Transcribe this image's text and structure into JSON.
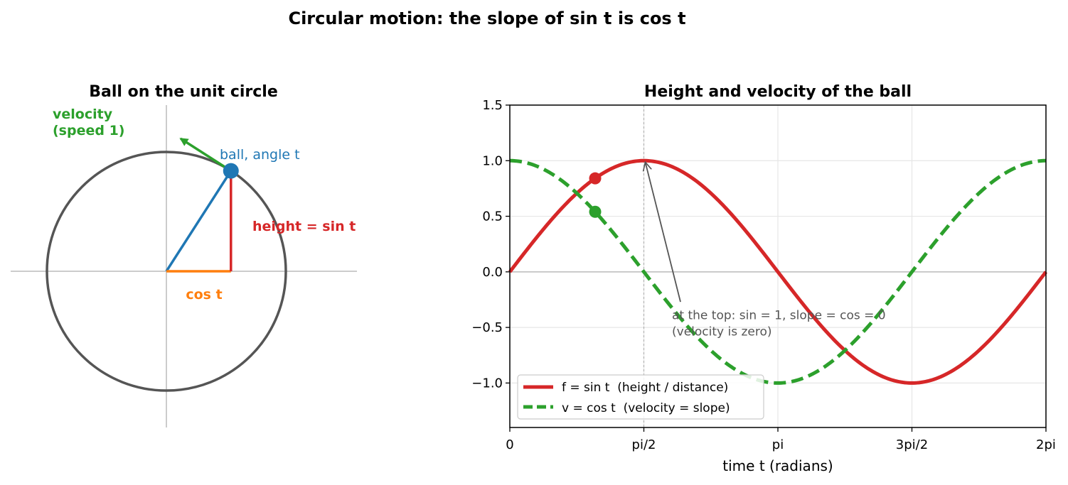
{
  "figure": {
    "suptitle": "Circular motion: the slope of  sin t  is  cos t"
  },
  "colors": {
    "sin": "#d62728",
    "cos": "#2ca02c",
    "radius": "#1f77b4",
    "cos_segment": "#ff7f0e",
    "circle": "#555555",
    "axes_line": "#bbbbbb",
    "annotation": "#555555"
  },
  "circle_panel": {
    "title": "Ball on the unit circle",
    "t": 1.0,
    "labels": {
      "velocity": [
        "velocity",
        "(speed 1)"
      ],
      "ball": "ball, angle t",
      "height": "height = sin t",
      "cos": "cos t"
    }
  },
  "chart_data": [
    {
      "type": "line",
      "title": "Height and velocity of the ball",
      "xlabel": "time  t  (radians)",
      "ylabel": "",
      "xlim": [
        0,
        6.283185
      ],
      "ylim": [
        -1.4,
        1.5
      ],
      "xticks": [
        {
          "value": 0,
          "label": "0"
        },
        {
          "value": 1.570796,
          "label": "pi/2"
        },
        {
          "value": 3.141593,
          "label": "pi"
        },
        {
          "value": 4.712389,
          "label": "3pi/2"
        },
        {
          "value": 6.283185,
          "label": "2pi"
        }
      ],
      "yticks": [
        {
          "value": 1.5,
          "label": "1.5"
        },
        {
          "value": 1.0,
          "label": "1.0"
        },
        {
          "value": 0.5,
          "label": "0.5"
        },
        {
          "value": 0.0,
          "label": "0.0"
        },
        {
          "value": -0.5,
          "label": "−0.5"
        },
        {
          "value": -1.0,
          "label": "−1.0"
        }
      ],
      "grid": true,
      "legend_position": "lower-left",
      "series": [
        {
          "name": "f = sin t  (height / distance)",
          "function": "sin",
          "style": "solid",
          "x": [
            0,
            0.3927,
            0.7854,
            1.1781,
            1.5708,
            1.9635,
            2.3562,
            2.7489,
            3.1416,
            3.5343,
            3.927,
            4.3197,
            4.7124,
            5.1051,
            5.4978,
            5.8905,
            6.2832
          ],
          "y": [
            0,
            0.383,
            0.707,
            0.924,
            1,
            0.924,
            0.707,
            0.383,
            0,
            -0.383,
            -0.707,
            -0.924,
            -1,
            -0.924,
            -0.707,
            -0.383,
            0
          ]
        },
        {
          "name": "v = cos t  (velocity = slope)",
          "function": "cos",
          "style": "dashed",
          "x": [
            0,
            0.3927,
            0.7854,
            1.1781,
            1.5708,
            1.9635,
            2.3562,
            2.7489,
            3.1416,
            3.5343,
            3.927,
            4.3197,
            4.7124,
            5.1051,
            5.4978,
            5.8905,
            6.2832
          ],
          "y": [
            1,
            0.924,
            0.707,
            0.383,
            0,
            -0.383,
            -0.707,
            -0.924,
            -1,
            -0.924,
            -0.707,
            -0.383,
            0,
            0.383,
            0.707,
            0.924,
            1
          ]
        }
      ],
      "markers": [
        {
          "series": "sin",
          "x": 1.0,
          "y": 0.841
        },
        {
          "series": "cos",
          "x": 1.0,
          "y": 0.54
        }
      ],
      "vline": {
        "x": 1.570796
      },
      "annotation": {
        "lines": [
          "at the top: sin = 1, slope = cos = 0",
          "(velocity is zero)"
        ],
        "arrow_to": {
          "x": 1.570796,
          "y": 1.0
        },
        "text_at": {
          "x": 1.9,
          "y": -0.45
        }
      }
    }
  ]
}
